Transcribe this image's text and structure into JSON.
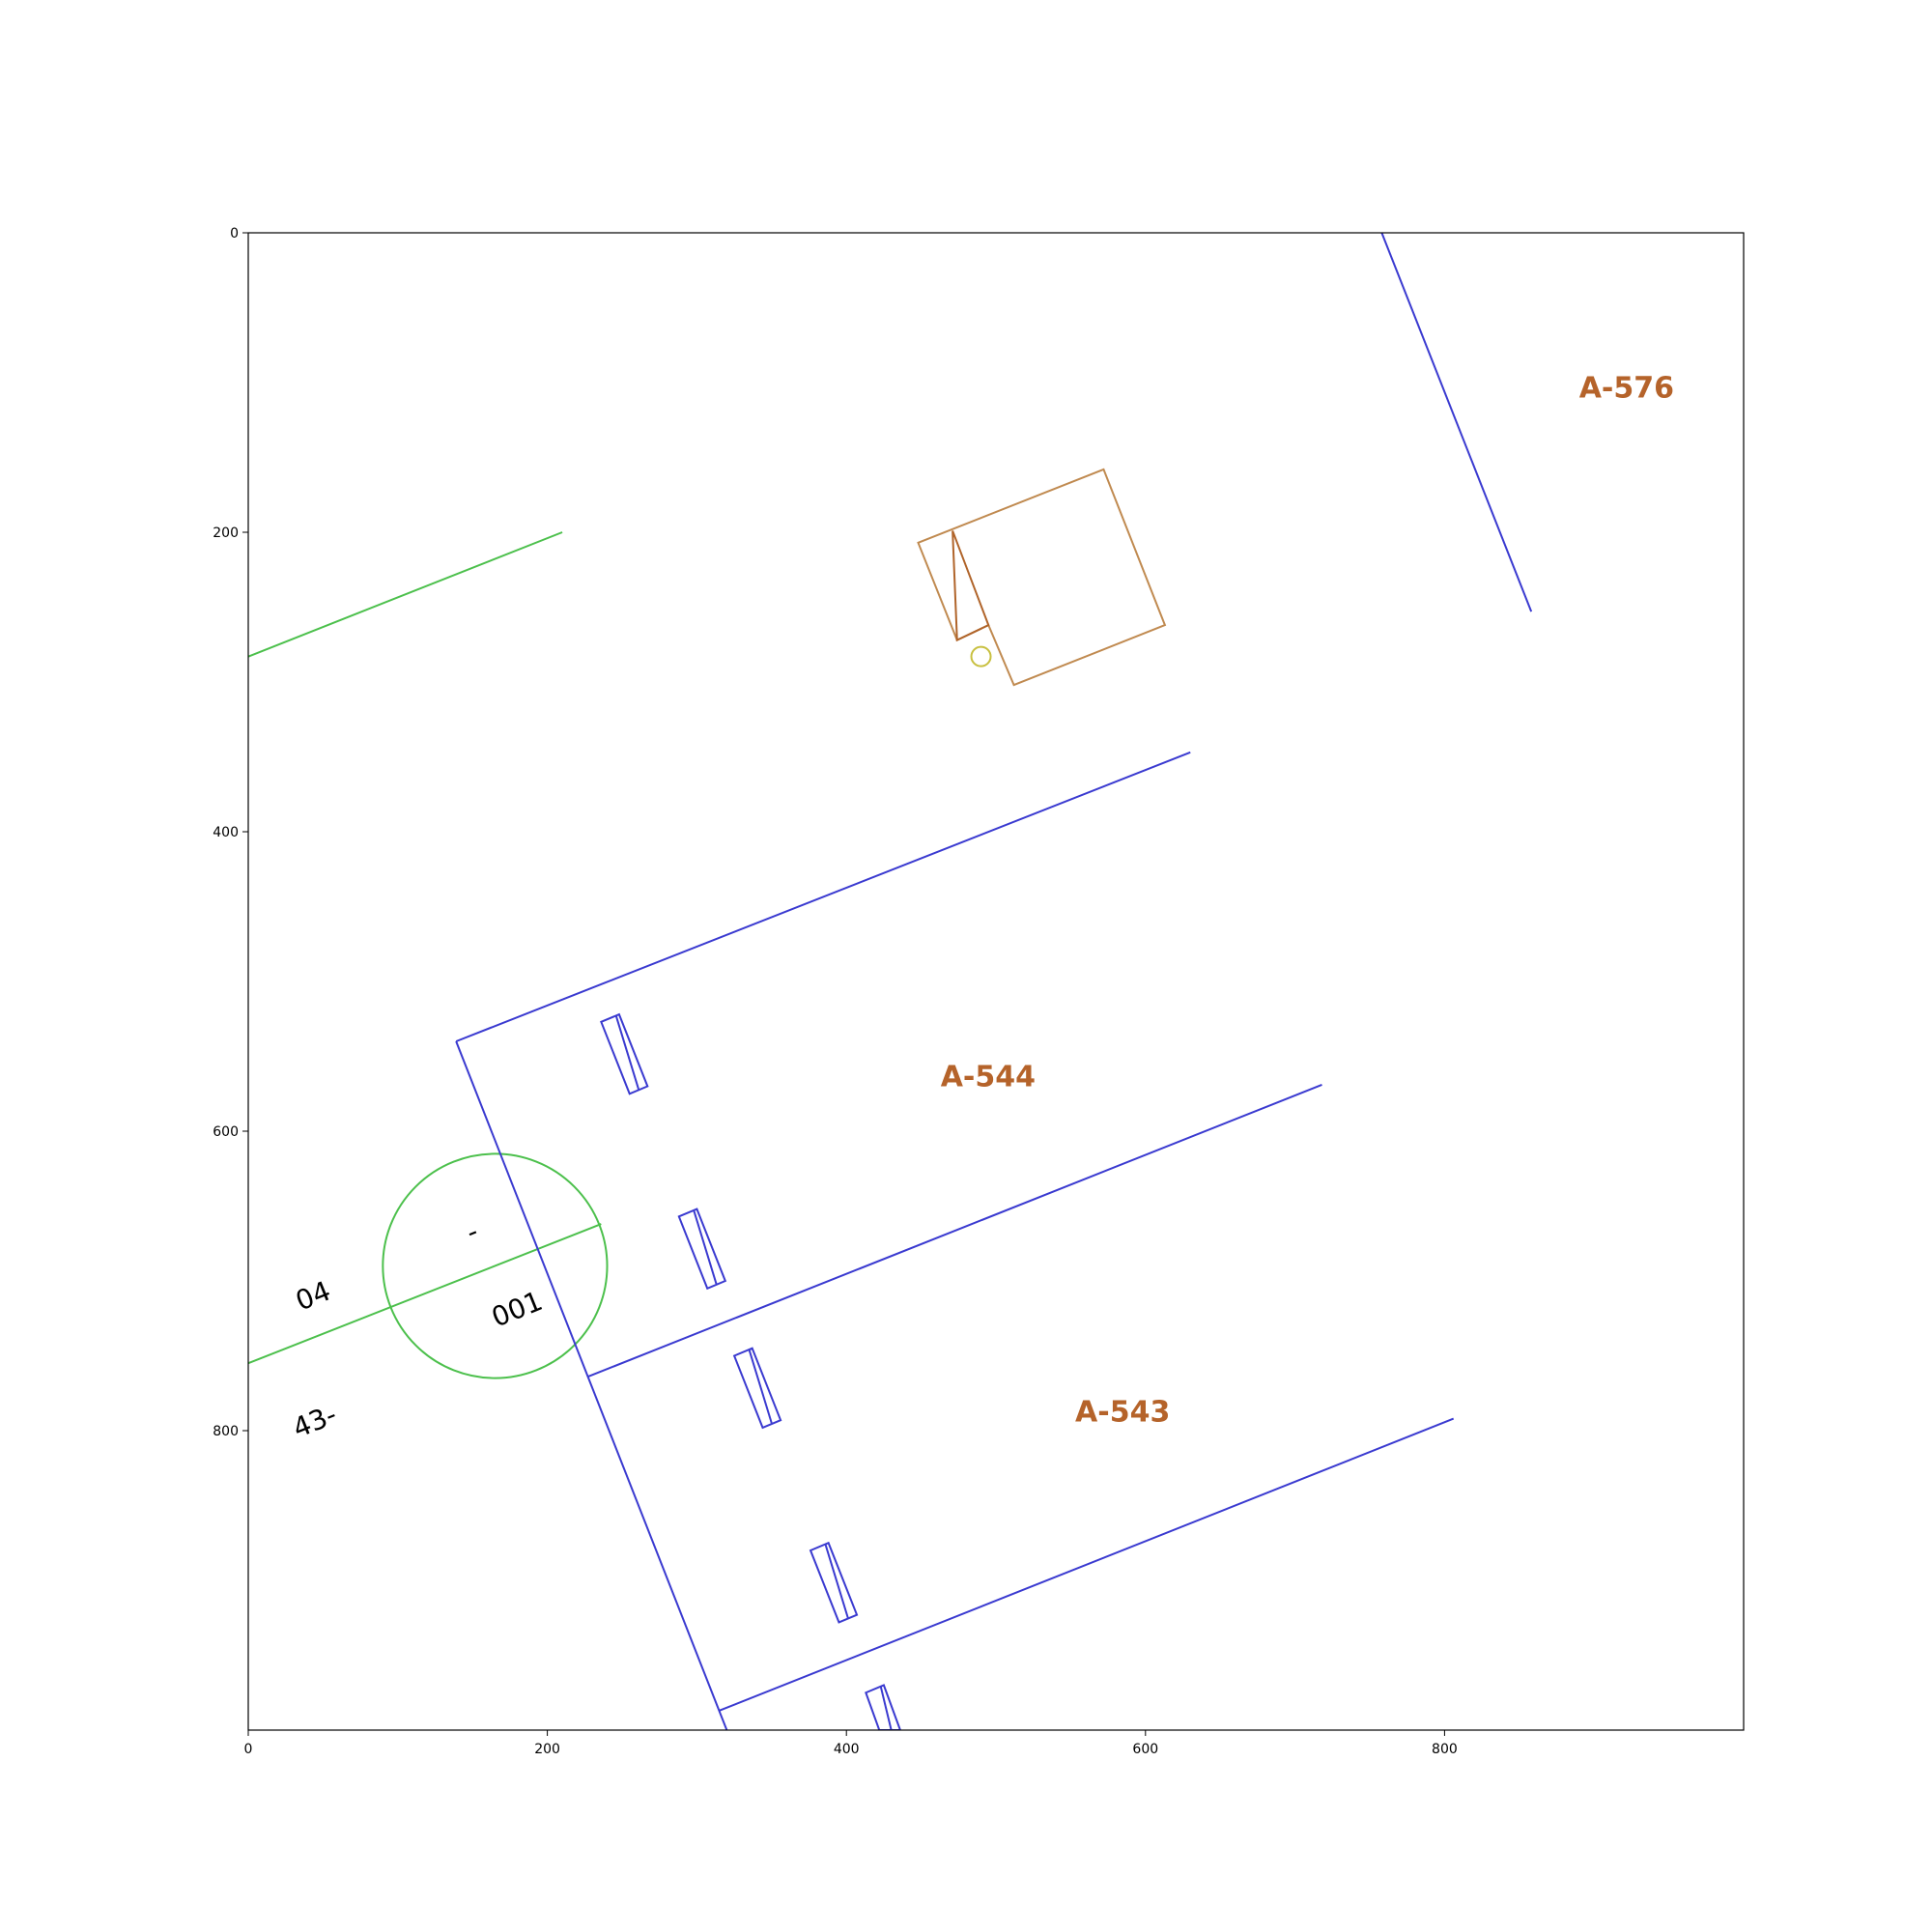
{
  "axes": {
    "x_range": [
      0,
      1000
    ],
    "y_range": [
      1000,
      0
    ],
    "y_inverted": true,
    "x_ticks": [
      0,
      200,
      400,
      600,
      800
    ],
    "y_ticks": [
      0,
      200,
      400,
      600,
      800
    ],
    "grid": false
  },
  "colors": {
    "lot_lines": "#3a3ad0",
    "road_lines": "#4cc04c",
    "building": "#c08a50",
    "building_inner": "#b0642a",
    "marker": "#c8c040",
    "lot_labels": "#b5632a",
    "parcel_labels": "#000000"
  },
  "labels": {
    "lots": [
      {
        "text": "A-576",
        "x": 890,
        "y": 110
      },
      {
        "text": "A-544",
        "x": 463,
        "y": 570
      },
      {
        "text": "A-543",
        "x": 553,
        "y": 794
      }
    ],
    "parcels": [
      {
        "text": "04",
        "x": 35,
        "y": 720,
        "rotate": -22
      },
      {
        "text": "001",
        "x": 166,
        "y": 731,
        "rotate": -22
      },
      {
        "text": "-",
        "x": 149,
        "y": 674,
        "rotate": -22
      },
      {
        "text": "43-",
        "x": 33,
        "y": 805,
        "rotate": -22
      }
    ]
  },
  "geometry": {
    "blue_lines": [
      [
        [
          758,
          0
        ],
        [
          858,
          253
        ]
      ],
      [
        [
          139,
          540
        ],
        [
          630,
          347
        ]
      ],
      [
        [
          139,
          540
        ],
        [
          320,
          1000
        ]
      ],
      [
        [
          227,
          764
        ],
        [
          718,
          569
        ]
      ],
      [
        [
          315,
          987
        ],
        [
          806,
          792
        ]
      ]
    ],
    "blue_rects": [
      [
        [
          236,
          527
        ],
        [
          248,
          522
        ],
        [
          267,
          570
        ],
        [
          255,
          575
        ]
      ],
      [
        [
          288,
          657
        ],
        [
          300,
          652
        ],
        [
          319,
          700
        ],
        [
          307,
          705
        ]
      ],
      [
        [
          325,
          750
        ],
        [
          337,
          745
        ],
        [
          356,
          793
        ],
        [
          344,
          798
        ]
      ],
      [
        [
          376,
          880
        ],
        [
          388,
          875
        ],
        [
          407,
          923
        ],
        [
          395,
          928
        ]
      ],
      [
        [
          413,
          975
        ],
        [
          425,
          970
        ],
        [
          436,
          1000
        ],
        [
          422,
          1000
        ]
      ]
    ],
    "blue_rect_dividers": [
      [
        [
          246,
          523
        ],
        [
          261,
          572
        ]
      ],
      [
        [
          298,
          653
        ],
        [
          313,
          702
        ]
      ],
      [
        [
          335,
          746
        ],
        [
          350,
          795
        ]
      ],
      [
        [
          386,
          876
        ],
        [
          401,
          925
        ]
      ],
      [
        [
          423,
          971
        ],
        [
          430,
          1000
        ]
      ]
    ],
    "green_lines": [
      [
        [
          0,
          283
        ],
        [
          210,
          200
        ]
      ],
      [
        [
          0,
          755
        ],
        [
          236,
          662
        ]
      ]
    ],
    "green_circle": {
      "cx": 165,
      "cy": 690,
      "r": 75
    },
    "building_outer": [
      [
        448,
        207
      ],
      [
        572,
        158
      ],
      [
        613,
        262
      ],
      [
        512,
        302
      ],
      [
        495,
        262
      ],
      [
        474,
        272
      ]
    ],
    "building_inner": [
      [
        471,
        199
      ],
      [
        495,
        262
      ],
      [
        474,
        272
      ],
      [
        471,
        199
      ]
    ],
    "marker_circle": {
      "cx": 490,
      "cy": 283,
      "r": 6
    }
  }
}
